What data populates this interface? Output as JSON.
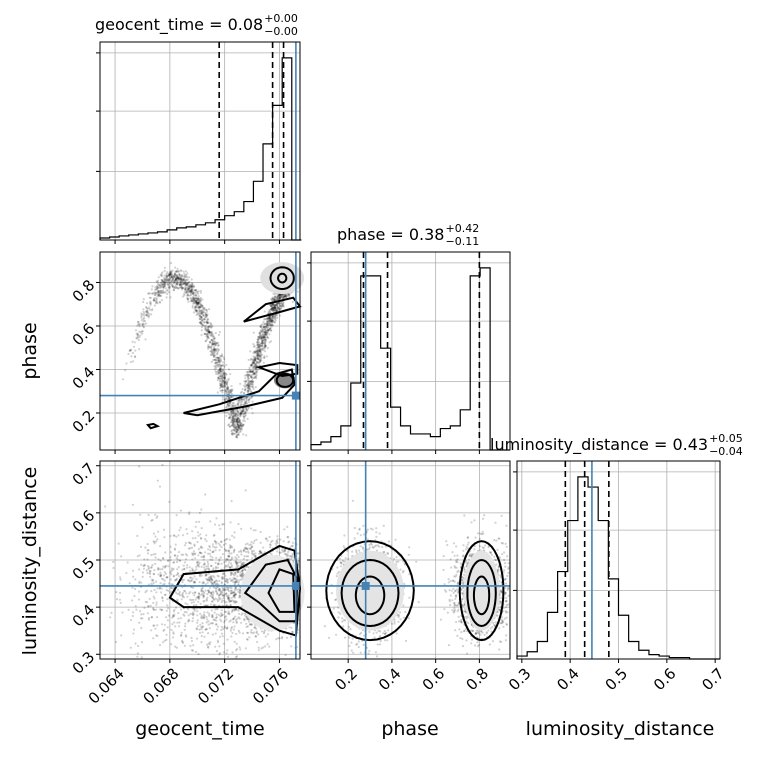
{
  "chart_data": {
    "type": "corner",
    "parameters": [
      "geocent_time",
      "phase",
      "luminosity_distance"
    ],
    "titles": [
      {
        "param": "geocent_time",
        "text": "geocent_time = 0.08",
        "plus": "+0.00",
        "minus": "−0.00"
      },
      {
        "param": "phase",
        "text": "phase = 0.38",
        "plus": "+0.42",
        "minus": "−0.11"
      },
      {
        "param": "luminosity_distance",
        "text": "luminosity_distance = 0.43",
        "plus": "+0.05",
        "minus": "−0.04"
      }
    ],
    "ranges": {
      "geocent_time": [
        0.0629,
        0.0775
      ],
      "phase": [
        0.03,
        0.94
      ],
      "luminosity_distance": [
        0.29,
        0.71
      ]
    },
    "ticks": {
      "geocent_time": [
        "0.064",
        "0.068",
        "0.072",
        "0.076"
      ],
      "phase": [
        "0.2",
        "0.4",
        "0.6",
        "0.8"
      ],
      "luminosity_distance": [
        "0.3",
        "0.4",
        "0.5",
        "0.6",
        "0.7"
      ]
    },
    "truths": {
      "geocent_time": 0.0772,
      "phase": 0.28,
      "luminosity_distance": 0.445
    },
    "quantiles": {
      "geocent_time": [
        0.0716,
        0.0755,
        0.0763
      ],
      "phase": [
        0.27,
        0.38,
        0.8
      ],
      "luminosity_distance": [
        0.39,
        0.43,
        0.48
      ]
    },
    "histograms": {
      "geocent_time": {
        "edges": [
          0.0629,
          0.0636,
          0.0643,
          0.065,
          0.0657,
          0.0664,
          0.0671,
          0.0678,
          0.0685,
          0.0692,
          0.0699,
          0.0706,
          0.0713,
          0.072,
          0.0727,
          0.0734,
          0.0741,
          0.0748,
          0.0755,
          0.0762,
          0.0769,
          0.0776
        ],
        "counts": [
          2,
          3,
          4,
          5,
          6,
          7,
          8,
          10,
          12,
          13,
          15,
          17,
          20,
          24,
          28,
          38,
          58,
          95,
          133,
          180,
          0
        ]
      },
      "phase": {
        "edges": [
          0.03,
          0.0755,
          0.121,
          0.1665,
          0.212,
          0.2575,
          0.303,
          0.3485,
          0.394,
          0.4395,
          0.485,
          0.5305,
          0.576,
          0.6215,
          0.667,
          0.7125,
          0.758,
          0.8035,
          0.849,
          0.8945,
          0.94
        ],
        "counts": [
          2,
          3,
          5,
          9,
          25,
          65,
          65,
          38,
          16,
          9,
          6,
          6,
          5,
          8,
          9,
          15,
          65,
          68,
          0,
          0
        ]
      },
      "luminosity_distance": {
        "edges": [
          0.29,
          0.311,
          0.332,
          0.353,
          0.374,
          0.395,
          0.416,
          0.437,
          0.458,
          0.479,
          0.5,
          0.521,
          0.542,
          0.563,
          0.584,
          0.605,
          0.626,
          0.647,
          0.668,
          0.689,
          0.71
        ],
        "counts": [
          2,
          5,
          12,
          32,
          60,
          95,
          125,
          118,
          95,
          55,
          30,
          12,
          6,
          3,
          2,
          1,
          1,
          0,
          0,
          0
        ]
      }
    },
    "grid": true
  }
}
